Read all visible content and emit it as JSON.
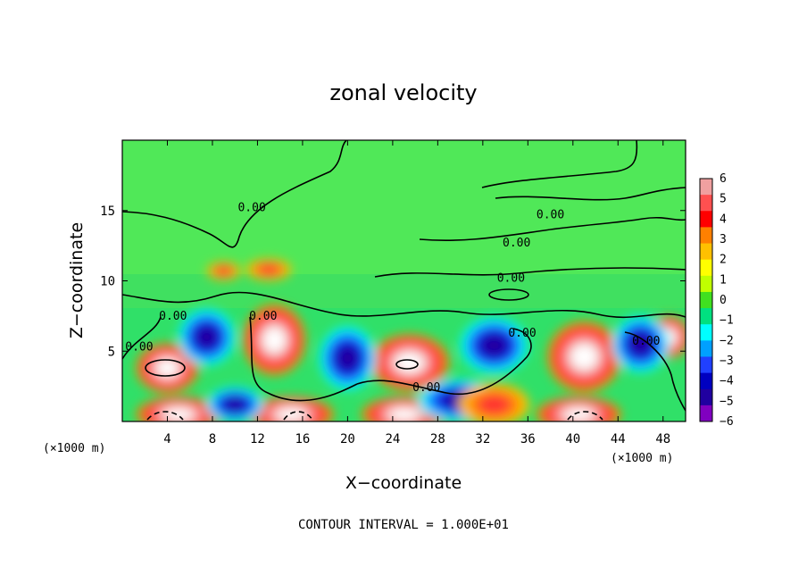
{
  "chart_data": {
    "type": "heatmap",
    "title": "zonal velocity",
    "xlabel": "X−coordinate",
    "ylabel": "Z−coordinate",
    "x_units": "(×1000 m)",
    "x_units_right": "(×1000 m)",
    "xlim": [
      0,
      50
    ],
    "ylim": [
      0,
      20
    ],
    "x_ticks": [
      4,
      8,
      12,
      16,
      20,
      24,
      28,
      32,
      36,
      40,
      44,
      48
    ],
    "x_tick_labels": [
      "4",
      "8",
      "12",
      "16",
      "20",
      "24",
      "28",
      "32",
      "36",
      "40",
      "44",
      "48"
    ],
    "y_ticks": [
      5,
      10,
      15
    ],
    "y_tick_labels": [
      "5",
      "10",
      "15"
    ],
    "colorbar": {
      "min": -6,
      "max": 6,
      "ticks": [
        6,
        5,
        4,
        3,
        2,
        1,
        0,
        -1,
        -2,
        -3,
        -4,
        -5,
        -6
      ],
      "tick_labels": [
        "6",
        "5",
        "4",
        "3",
        "2",
        "1",
        "0",
        "−1",
        "−2",
        "−3",
        "−4",
        "−5",
        "−6"
      ],
      "colors": [
        "#f0a0a0",
        "#ff5050",
        "#ff0000",
        "#ff8000",
        "#ffc000",
        "#ffff00",
        "#c0ff00",
        "#40e020",
        "#00e080",
        "#00ffff",
        "#00a0ff",
        "#2040ff",
        "#0000c0",
        "#2000a0",
        "#8000c0"
      ]
    },
    "contour_labels": [
      {
        "text": "0.00",
        "x": 11.5,
        "y": 15.2
      },
      {
        "text": "0.00",
        "x": 38.0,
        "y": 14.7
      },
      {
        "text": "0.00",
        "x": 35.0,
        "y": 12.7
      },
      {
        "text": "0.00",
        "x": 34.5,
        "y": 10.2
      },
      {
        "text": "0.00",
        "x": 4.5,
        "y": 7.5
      },
      {
        "text": "0.00",
        "x": 12.5,
        "y": 7.5
      },
      {
        "text": "0.00",
        "x": 35.5,
        "y": 6.3
      },
      {
        "text": "0.00",
        "x": 27.0,
        "y": 2.4
      },
      {
        "text": "0.00",
        "x": 46.5,
        "y": 5.7
      },
      {
        "text": "0.00",
        "x": 1.5,
        "y": 5.3
      }
    ],
    "features": [
      {
        "type": "strong-positive",
        "x": 4.0,
        "y": 3.8,
        "rx": 2.2,
        "ry": 1.4
      },
      {
        "type": "strong-positive",
        "x": 13.5,
        "y": 5.8,
        "rx": 2.2,
        "ry": 2.0
      },
      {
        "type": "strong-positive",
        "x": 25.5,
        "y": 4.2,
        "rx": 2.8,
        "ry": 1.6
      },
      {
        "type": "strong-positive",
        "x": 41.0,
        "y": 4.6,
        "rx": 2.6,
        "ry": 2.0
      },
      {
        "type": "strong-positive",
        "x": 48.5,
        "y": 6.0,
        "rx": 1.5,
        "ry": 1.2
      },
      {
        "type": "strong-positive",
        "x": 5.0,
        "y": 0.5,
        "rx": 3.0,
        "ry": 1.0
      },
      {
        "type": "strong-positive",
        "x": 15.0,
        "y": 0.5,
        "rx": 3.0,
        "ry": 1.0
      },
      {
        "type": "strong-positive",
        "x": 25.0,
        "y": 0.5,
        "rx": 3.0,
        "ry": 1.0
      },
      {
        "type": "strong-positive",
        "x": 40.5,
        "y": 0.5,
        "rx": 3.0,
        "ry": 1.0
      },
      {
        "type": "negative",
        "x": 7.5,
        "y": 6.0,
        "rx": 2.0,
        "ry": 1.6
      },
      {
        "type": "negative",
        "x": 20.0,
        "y": 4.5,
        "rx": 2.0,
        "ry": 1.8
      },
      {
        "type": "negative",
        "x": 33.0,
        "y": 5.4,
        "rx": 2.4,
        "ry": 1.6
      },
      {
        "type": "negative",
        "x": 46.0,
        "y": 5.5,
        "rx": 2.0,
        "ry": 1.6
      },
      {
        "type": "negative",
        "x": 10.0,
        "y": 1.2,
        "rx": 2.0,
        "ry": 1.0
      },
      {
        "type": "negative",
        "x": 30.0,
        "y": 1.5,
        "rx": 3.0,
        "ry": 1.2
      },
      {
        "type": "positive",
        "x": 33.0,
        "y": 1.2,
        "rx": 2.5,
        "ry": 1.2
      },
      {
        "type": "positive",
        "x": 9.0,
        "y": 10.7,
        "rx": 1.2,
        "ry": 0.5
      },
      {
        "type": "positive",
        "x": 13.0,
        "y": 10.8,
        "rx": 1.6,
        "ry": 0.6
      }
    ],
    "grid": false
  },
  "footer": {
    "contour_interval": "CONTOUR INTERVAL = 1.000E+01"
  }
}
